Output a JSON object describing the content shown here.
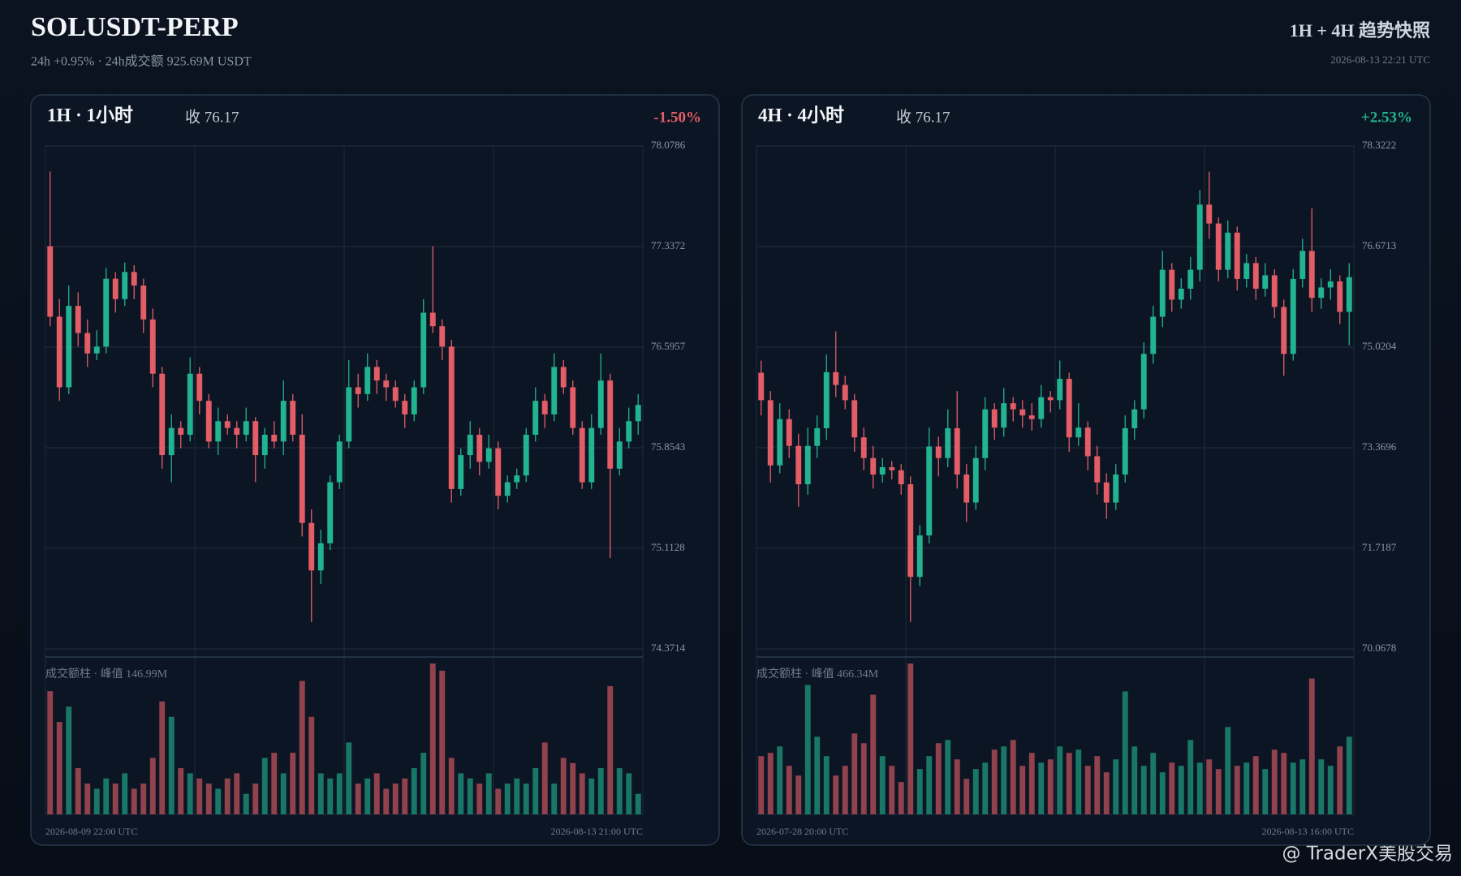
{
  "header": {
    "title": "SOLUSDT-PERP",
    "subtitle": "24h +0.95% · 24h成交额 925.69M USDT",
    "right_title": "1H + 4H 趋势快照",
    "timestamp": "2026-08-13 22:21 UTC"
  },
  "watermark": "@ TraderX美股交易",
  "chart_data": [
    {
      "type": "candlestick",
      "label": "1H · 1小时",
      "close_label": "收 76.17",
      "change": "-1.50%",
      "change_color": "#e35d66",
      "volume_label": "成交额柱 · 峰值 146.99M",
      "x_start": "2026-08-09 22:00 UTC",
      "x_end": "2026-08-13 21:00 UTC",
      "up_color": "#22b391",
      "down_color": "#e35d66",
      "ylim": [
        74.3714,
        78.0786
      ],
      "yticks": [
        78.0786,
        77.3372,
        76.5957,
        75.8543,
        75.1128,
        74.3714
      ],
      "open": [
        77.34,
        76.82,
        76.3,
        76.9,
        76.7,
        76.55,
        76.6,
        77.1,
        76.95,
        77.15,
        77.05,
        76.8,
        76.4,
        75.8,
        76.0,
        75.95,
        76.4,
        76.2,
        75.9,
        76.05,
        76.0,
        75.95,
        76.05,
        75.8,
        75.95,
        75.9,
        76.2,
        75.95,
        75.3,
        74.95,
        75.15,
        75.6,
        75.9,
        76.3,
        76.25,
        76.45,
        76.35,
        76.3,
        76.2,
        76.1,
        76.3,
        76.85,
        76.75,
        76.6,
        75.55,
        75.8,
        75.95,
        75.75,
        75.85,
        75.5,
        75.6,
        75.65,
        75.95,
        76.2,
        76.1,
        76.45,
        76.3,
        76.0,
        75.6,
        76.0,
        76.35,
        75.7,
        75.9,
        76.05
      ],
      "high": [
        77.89,
        76.95,
        77.05,
        77.0,
        76.8,
        76.72,
        77.18,
        77.15,
        77.22,
        77.2,
        77.1,
        76.88,
        76.45,
        76.1,
        76.05,
        76.52,
        76.45,
        76.25,
        76.15,
        76.1,
        76.05,
        76.15,
        76.08,
        76.0,
        76.05,
        76.35,
        76.25,
        76.1,
        75.4,
        75.25,
        75.65,
        75.95,
        76.5,
        76.4,
        76.55,
        76.5,
        76.4,
        76.35,
        76.25,
        76.35,
        76.95,
        77.34,
        76.8,
        76.65,
        75.85,
        76.05,
        76.0,
        75.95,
        75.9,
        75.65,
        75.7,
        76.0,
        76.3,
        76.25,
        76.55,
        76.5,
        76.35,
        76.05,
        76.1,
        76.55,
        76.4,
        76.0,
        76.15,
        76.25
      ],
      "low": [
        76.75,
        76.2,
        76.25,
        76.6,
        76.45,
        76.5,
        76.55,
        76.85,
        76.9,
        76.95,
        76.7,
        76.3,
        75.7,
        75.6,
        75.85,
        75.9,
        76.1,
        75.85,
        75.8,
        75.95,
        75.85,
        75.9,
        75.6,
        75.7,
        75.85,
        75.8,
        75.9,
        75.2,
        74.57,
        74.85,
        75.1,
        75.55,
        75.85,
        76.15,
        76.2,
        76.25,
        76.2,
        76.15,
        76.0,
        76.05,
        76.25,
        76.7,
        76.5,
        75.45,
        75.5,
        75.7,
        75.65,
        75.7,
        75.4,
        75.45,
        75.55,
        75.6,
        75.9,
        76.0,
        76.05,
        76.25,
        75.95,
        75.55,
        75.55,
        75.95,
        75.04,
        75.65,
        75.85,
        75.95
      ],
      "close": [
        76.82,
        76.3,
        76.9,
        76.7,
        76.55,
        76.6,
        77.1,
        76.95,
        77.15,
        77.05,
        76.8,
        76.4,
        75.8,
        76.0,
        75.95,
        76.4,
        76.2,
        75.9,
        76.05,
        76.0,
        75.95,
        76.05,
        75.8,
        75.95,
        75.9,
        76.2,
        75.95,
        75.3,
        74.95,
        75.15,
        75.6,
        75.9,
        76.3,
        76.25,
        76.45,
        76.35,
        76.3,
        76.2,
        76.1,
        76.3,
        76.85,
        76.75,
        76.6,
        75.55,
        75.8,
        75.95,
        75.75,
        75.85,
        75.5,
        75.6,
        75.65,
        75.95,
        76.2,
        76.1,
        76.45,
        76.3,
        76.0,
        75.6,
        76.0,
        76.35,
        75.7,
        75.9,
        76.05,
        76.17
      ],
      "volume": [
        120,
        90,
        105,
        45,
        30,
        25,
        35,
        30,
        40,
        25,
        30,
        55,
        110,
        95,
        45,
        40,
        35,
        30,
        25,
        35,
        40,
        20,
        30,
        55,
        60,
        40,
        60,
        130,
        95,
        40,
        35,
        40,
        70,
        30,
        35,
        40,
        25,
        30,
        35,
        45,
        60,
        146.99,
        140,
        55,
        40,
        35,
        30,
        40,
        25,
        30,
        35,
        30,
        45,
        70,
        30,
        55,
        50,
        40,
        35,
        45,
        125,
        45,
        40,
        20
      ]
    },
    {
      "type": "candlestick",
      "label": "4H · 4小时",
      "close_label": "收 76.17",
      "change": "+2.53%",
      "change_color": "#22b391",
      "volume_label": "成交额柱 · 峰值 466.34M",
      "x_start": "2026-07-28 20:00 UTC",
      "x_end": "2026-08-13 16:00 UTC",
      "up_color": "#22b391",
      "down_color": "#e35d66",
      "ylim": [
        70.0678,
        78.3222
      ],
      "yticks": [
        78.3222,
        76.6713,
        75.0204,
        73.3696,
        71.7187,
        70.0678
      ],
      "open": [
        74.6,
        74.15,
        73.08,
        73.84,
        73.4,
        72.77,
        73.4,
        73.69,
        74.61,
        74.4,
        74.15,
        73.54,
        73.2,
        72.93,
        73.05,
        73.0,
        72.77,
        71.25,
        71.93,
        73.39,
        73.2,
        73.69,
        72.93,
        72.47,
        73.2,
        74.0,
        73.7,
        74.1,
        74.0,
        73.9,
        73.84,
        74.2,
        74.15,
        74.5,
        73.54,
        73.7,
        73.23,
        72.8,
        72.47,
        72.93,
        73.69,
        74.0,
        74.91,
        75.52,
        76.29,
        75.8,
        75.98,
        76.29,
        77.36,
        77.05,
        76.29,
        76.9,
        76.14,
        76.4,
        75.98,
        76.2,
        75.68,
        74.91,
        76.14,
        76.6,
        75.83,
        76.0,
        76.1,
        75.6
      ],
      "high": [
        74.8,
        74.3,
        74.1,
        74.0,
        73.6,
        73.7,
        73.9,
        74.9,
        75.28,
        74.55,
        74.25,
        73.7,
        73.4,
        73.2,
        73.15,
        73.1,
        72.9,
        72.1,
        73.7,
        73.55,
        74.0,
        74.3,
        73.1,
        73.4,
        74.2,
        74.1,
        74.35,
        74.2,
        74.15,
        74.1,
        74.4,
        74.3,
        74.8,
        74.6,
        74.1,
        73.8,
        73.4,
        72.95,
        73.1,
        73.9,
        74.15,
        75.1,
        75.7,
        76.6,
        76.4,
        76.15,
        76.5,
        77.6,
        77.9,
        77.15,
        77.1,
        77.0,
        76.55,
        76.5,
        76.4,
        76.3,
        75.8,
        76.3,
        76.8,
        77.3,
        76.15,
        76.3,
        76.2,
        76.4
      ],
      "low": [
        73.9,
        72.8,
        72.95,
        73.2,
        72.4,
        72.6,
        73.2,
        73.5,
        74.2,
        74.0,
        73.3,
        73.0,
        72.7,
        72.8,
        72.85,
        72.6,
        70.51,
        71.1,
        71.8,
        72.9,
        73.05,
        72.7,
        72.15,
        72.35,
        73.0,
        73.5,
        73.55,
        73.8,
        73.7,
        73.65,
        73.7,
        73.95,
        74.0,
        73.3,
        73.4,
        73.0,
        72.6,
        72.2,
        72.35,
        72.8,
        73.5,
        73.85,
        74.75,
        75.35,
        75.6,
        75.65,
        75.8,
        76.1,
        76.8,
        76.1,
        76.15,
        75.95,
        76.0,
        75.8,
        75.85,
        75.5,
        74.55,
        74.8,
        76.0,
        75.6,
        75.65,
        75.8,
        75.4,
        75.05
      ],
      "close": [
        74.15,
        73.08,
        73.84,
        73.4,
        72.77,
        73.4,
        73.69,
        74.61,
        74.4,
        74.15,
        73.54,
        73.2,
        72.93,
        73.05,
        73.0,
        72.77,
        71.25,
        71.93,
        73.39,
        73.2,
        73.69,
        72.93,
        72.47,
        73.2,
        74.0,
        73.7,
        74.1,
        74.0,
        73.9,
        73.84,
        74.2,
        74.15,
        74.5,
        73.54,
        73.7,
        73.23,
        72.8,
        72.47,
        72.93,
        73.69,
        74.0,
        74.91,
        75.52,
        76.29,
        75.8,
        75.98,
        76.29,
        77.36,
        77.05,
        76.29,
        76.9,
        76.14,
        76.4,
        75.98,
        76.2,
        75.68,
        74.91,
        76.14,
        76.6,
        75.83,
        76.0,
        76.1,
        75.6,
        76.17
      ],
      "volume": [
        180,
        190,
        210,
        150,
        120,
        400,
        240,
        180,
        120,
        150,
        250,
        220,
        370,
        180,
        150,
        100,
        466.34,
        140,
        180,
        220,
        230,
        170,
        110,
        140,
        160,
        200,
        210,
        230,
        150,
        190,
        160,
        170,
        210,
        190,
        200,
        150,
        180,
        130,
        170,
        380,
        210,
        150,
        190,
        130,
        160,
        150,
        230,
        160,
        170,
        140,
        270,
        150,
        160,
        180,
        140,
        200,
        190,
        160,
        170,
        420,
        170,
        150,
        210,
        240
      ]
    }
  ]
}
